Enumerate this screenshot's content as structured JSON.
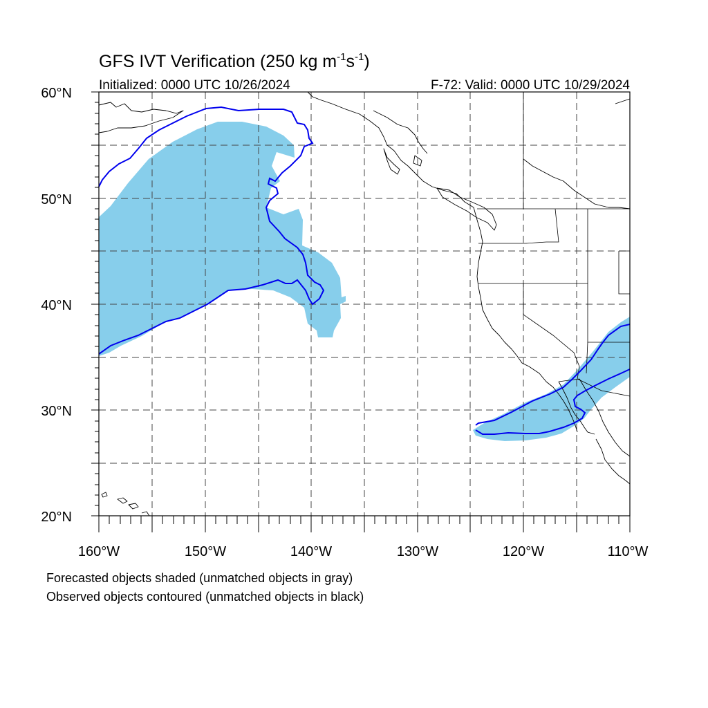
{
  "figure": {
    "title": "GFS IVT Verification (250 kg m",
    "title_sup1": "-1",
    "title_mid": "s",
    "title_sup2": "-1",
    "title_end": ")",
    "initialized": "Initialized: 0000 UTC 10/26/2024",
    "valid": "F-72: Valid: 0000 UTC 10/29/2024",
    "note_forecast": "Forecasted objects shaded (unmatched objects in gray)",
    "note_observed": "Observed objects contoured (unmatched objects in black)"
  },
  "map": {
    "lon_min": -160,
    "lon_max": -110,
    "lat_min": 20,
    "lat_max": 60,
    "lat_labels": [
      "20°N",
      "30°N",
      "40°N",
      "50°N",
      "60°N"
    ],
    "lon_labels": [
      "160°W",
      "150°W",
      "140°W",
      "130°W",
      "120°W",
      "110°W"
    ],
    "forecast_fill_color": "#87ceeb",
    "observed_contour_color": "#0000ee",
    "coast_color": "#000000"
  }
}
